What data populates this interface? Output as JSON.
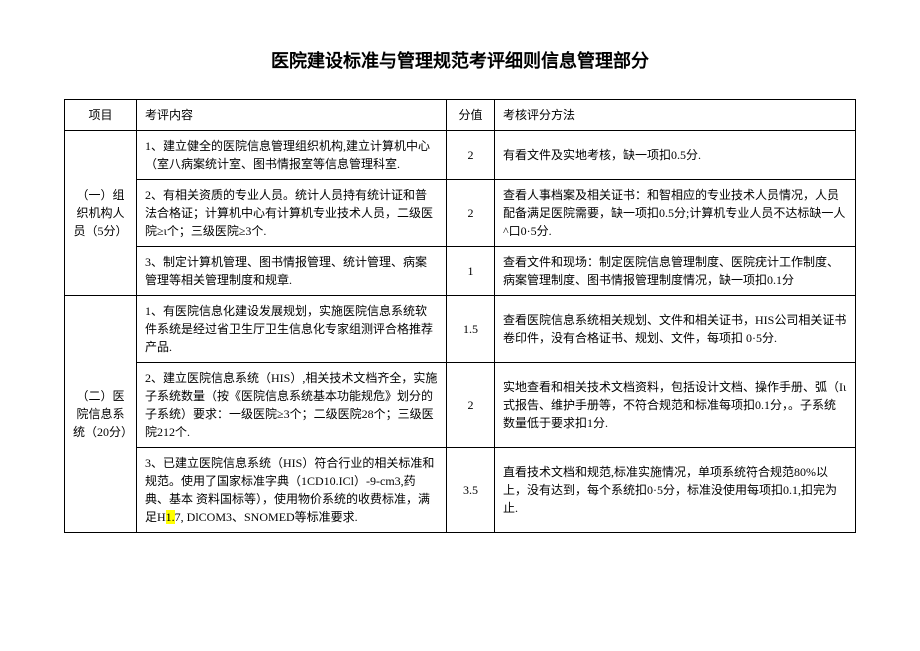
{
  "title": "医院建设标准与管理规范考评细则信息管理部分",
  "headers": {
    "item": "项目",
    "content": "考评内容",
    "score": "分值",
    "method": "考核评分方法"
  },
  "sections": [
    {
      "item_label": "（一）组织机构人员（5分）",
      "rows": [
        {
          "content": "1、建立健全的医院信息管理组织机构,建立计算机中心（室八病案统计室、图书情报室等信息管理科室.",
          "score": "2",
          "method": "有看文件及实地考核，缺一项扣0.5分."
        },
        {
          "content": "2、有相关资质的专业人员。统计人员持有统计证和普法合格证；计算机中心有计算机专业技术人员，二级医院≥ι个；三级医院≥3个.",
          "score": "2",
          "method": "查看人事档案及相关证书：和智相应的专业技术人员情况，人员配备满足医院需要，缺一项扣0.5分;计算机专业人员不达标缺一人^口0·5分."
        },
        {
          "content": "3、制定计算机管理、图书情报管理、统计管理、病案管理等相关管理制度和规章.",
          "score": "1",
          "method": "查看文件和现场：制定医院信息管理制度、医院疣计工作制度、病案管理制度、图书情报管理制度情况，缺一项扣0.1分"
        }
      ]
    },
    {
      "item_label": "（二）医院信息系统（20分）",
      "rows": [
        {
          "content": "1、有医院信息化建设发展规划，实施医院信息系统软件系统是经过省卫生厅卫生信息化专家组测评合格推荐产品.",
          "score": "1.5",
          "method": "查看医院信息系统相关规划、文件和相关证书，HIS公司相关证书卷印件，没有合格证书、规划、文件，每项扣\n0·5分."
        },
        {
          "content": "2、建立医院信息系统（HIS）,相关技术文档齐全，实施子系统数量（按《医院信息系统基本功能规危》划分的子系统）要求：一级医院≥3个；二级医院28个；三级医院212个.",
          "score": "2",
          "method": "实地查看和相关技术文档资料，包括设计文档、操作手册、弧（Iι式报告、维护手册等，不符合规范和标准每项扣0.1分，。子系统数量低于要求扣1分."
        },
        {
          "content_pre": "3、已建立医院信息系统（HIS）符合行业的相关标准和规范。使用了国家标准字典（1CD10.ICl）-9-cm3,药典、基本\n资料国标等），使用物价系统的收费标准，满足H",
          "content_hl": "1.",
          "content_post": "7,\nDlCOM3、SNOMED等标准要求.",
          "score": "3.5",
          "method": "直看技术文档和规范,标准实施情况，单项系统符合规范80%以上，没有达到，每个系统扣0·5分，标准没使用每项扣0.1,扣完为止."
        }
      ]
    }
  ],
  "styles": {
    "background": "#ffffff",
    "text_color": "#000000",
    "border_color": "#000000",
    "highlight_color": "#ffff00",
    "title_fontsize": 18,
    "body_fontsize": 12
  }
}
